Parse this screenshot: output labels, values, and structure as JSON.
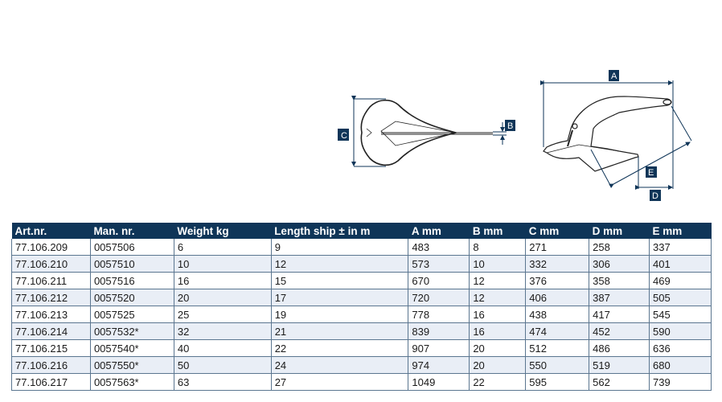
{
  "diagram": {
    "labels": {
      "a": "A",
      "b": "B",
      "c": "C",
      "d": "D",
      "e": "E"
    },
    "accent": "#0f3558"
  },
  "table": {
    "headers": [
      "Art.nr.",
      "Man. nr.",
      "Weight kg",
      "Length ship ± in m",
      "A mm",
      "B mm",
      "C mm",
      "D mm",
      "E mm"
    ],
    "rows": [
      [
        "77.106.209",
        "0057506",
        "6",
        "9",
        "483",
        "8",
        "271",
        "258",
        "337"
      ],
      [
        "77.106.210",
        "0057510",
        "10",
        "12",
        "573",
        "10",
        "332",
        "306",
        "401"
      ],
      [
        "77.106.211",
        "0057516",
        "16",
        "15",
        "670",
        "12",
        "376",
        "358",
        "469"
      ],
      [
        "77.106.212",
        "0057520",
        "20",
        "17",
        "720",
        "12",
        "406",
        "387",
        "505"
      ],
      [
        "77.106.213",
        "0057525",
        "25",
        "19",
        "778",
        "16",
        "438",
        "417",
        "545"
      ],
      [
        "77.106.214",
        "0057532*",
        "32",
        "21",
        "839",
        "16",
        "474",
        "452",
        "590"
      ],
      [
        "77.106.215",
        "0057540*",
        "40",
        "22",
        "907",
        "20",
        "512",
        "486",
        "636"
      ],
      [
        "77.106.216",
        "0057550*",
        "50",
        "24",
        "974",
        "20",
        "550",
        "519",
        "680"
      ],
      [
        "77.106.217",
        "0057563*",
        "63",
        "27",
        "1049",
        "22",
        "595",
        "562",
        "739"
      ]
    ]
  }
}
